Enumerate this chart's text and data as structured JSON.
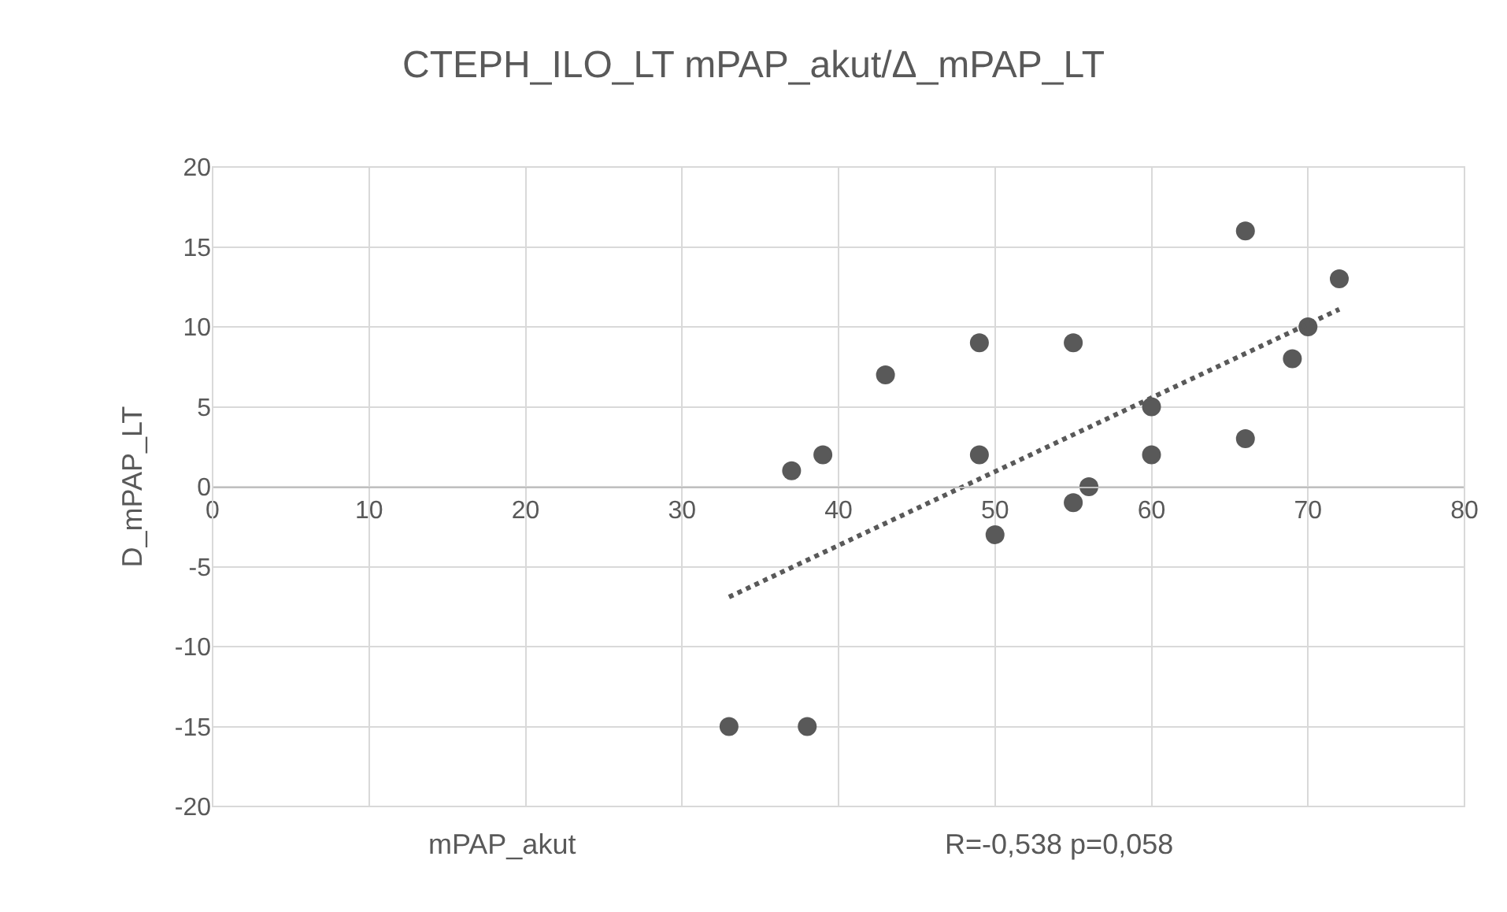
{
  "chart_data": {
    "type": "scatter",
    "title": "CTEPH_ILO_LT mPAP_akut/Δ_mPAP_LT",
    "xlabel": "mPAP_akut",
    "ylabel": "D_mPAP_LT",
    "annotations": [
      "R=-0,538 p=0,058"
    ],
    "series": [
      {
        "color": "#595959",
        "x": [
          33,
          38,
          37,
          39,
          43,
          49,
          49,
          50,
          55,
          55,
          56,
          60,
          60,
          66,
          66,
          69,
          70,
          72
        ],
        "values": [
          -15,
          -15,
          1,
          2,
          7,
          9,
          2,
          -3,
          9,
          -1,
          0,
          5,
          2,
          16,
          3,
          8,
          10,
          13
        ]
      },
      {
        "type": "line",
        "color": "#595959",
        "line_style": "dotted",
        "marker": "none",
        "x": [
          33,
          72
        ],
        "values": [
          -6.9,
          11.1
        ]
      }
    ],
    "xlim": [
      0,
      80
    ],
    "xticks": [
      0,
      10,
      20,
      30,
      40,
      50,
      60,
      70,
      80
    ],
    "ylim": [
      -20,
      20
    ],
    "yticks": [
      -20,
      -15,
      -10,
      -5,
      0,
      5,
      10,
      15,
      20
    ],
    "grid": true,
    "legend": false,
    "marker": "circle"
  }
}
